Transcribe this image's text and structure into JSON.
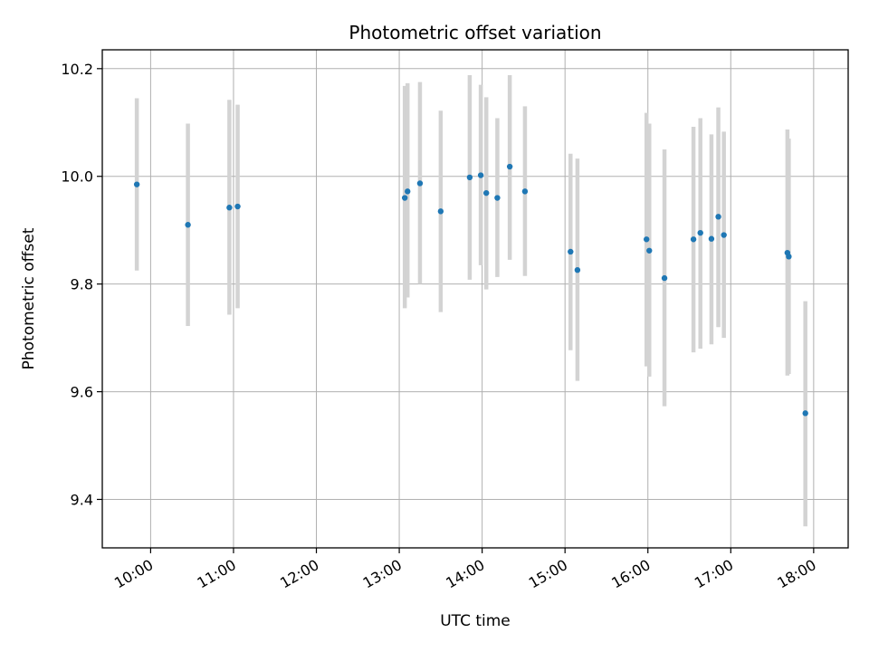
{
  "chart_data": {
    "type": "scatter",
    "title": "Photometric offset variation",
    "xlabel": "UTC time",
    "ylabel": "Photometric offset",
    "xlim": [
      "09:25",
      "18:25"
    ],
    "ylim": [
      9.31,
      10.235
    ],
    "x_ticks": [
      "10:00",
      "11:00",
      "12:00",
      "13:00",
      "14:00",
      "15:00",
      "16:00",
      "17:00",
      "18:00"
    ],
    "y_ticks": [
      9.4,
      9.6,
      9.8,
      10.0,
      10.2
    ],
    "grid": true,
    "legend": "none",
    "colors": {
      "point": "#1f77b4",
      "errorbar": "#d3d3d3",
      "grid": "#b0b0b0"
    },
    "points": [
      {
        "t": "09:50",
        "y": 9.985,
        "lo": 9.825,
        "hi": 10.145
      },
      {
        "t": "10:27",
        "y": 9.91,
        "lo": 9.722,
        "hi": 10.098
      },
      {
        "t": "10:57",
        "y": 9.942,
        "lo": 9.743,
        "hi": 10.142
      },
      {
        "t": "11:03",
        "y": 9.944,
        "lo": 9.755,
        "hi": 10.133
      },
      {
        "t": "13:04",
        "y": 9.96,
        "lo": 9.755,
        "hi": 10.168
      },
      {
        "t": "13:06",
        "y": 9.972,
        "lo": 9.775,
        "hi": 10.173
      },
      {
        "t": "13:15",
        "y": 9.987,
        "lo": 9.8,
        "hi": 10.175
      },
      {
        "t": "13:30",
        "y": 9.935,
        "lo": 9.748,
        "hi": 10.122
      },
      {
        "t": "13:51",
        "y": 9.998,
        "lo": 9.808,
        "hi": 10.188
      },
      {
        "t": "13:59",
        "y": 10.002,
        "lo": 9.835,
        "hi": 10.17
      },
      {
        "t": "14:03",
        "y": 9.969,
        "lo": 9.79,
        "hi": 10.147
      },
      {
        "t": "14:11",
        "y": 9.96,
        "lo": 9.813,
        "hi": 10.108
      },
      {
        "t": "14:20",
        "y": 10.018,
        "lo": 9.845,
        "hi": 10.188
      },
      {
        "t": "14:31",
        "y": 9.972,
        "lo": 9.815,
        "hi": 10.13
      },
      {
        "t": "15:04",
        "y": 9.86,
        "lo": 9.677,
        "hi": 10.042
      },
      {
        "t": "15:09",
        "y": 9.826,
        "lo": 9.62,
        "hi": 10.033
      },
      {
        "t": "15:59",
        "y": 9.883,
        "lo": 9.647,
        "hi": 10.118
      },
      {
        "t": "16:01",
        "y": 9.862,
        "lo": 9.628,
        "hi": 10.098
      },
      {
        "t": "16:12",
        "y": 9.811,
        "lo": 9.573,
        "hi": 10.05
      },
      {
        "t": "16:33",
        "y": 9.883,
        "lo": 9.673,
        "hi": 10.092
      },
      {
        "t": "16:38",
        "y": 9.895,
        "lo": 9.68,
        "hi": 10.108
      },
      {
        "t": "16:46",
        "y": 9.884,
        "lo": 9.688,
        "hi": 10.078
      },
      {
        "t": "16:51",
        "y": 9.925,
        "lo": 9.72,
        "hi": 10.128
      },
      {
        "t": "16:55",
        "y": 9.891,
        "lo": 9.7,
        "hi": 10.083
      },
      {
        "t": "17:41",
        "y": 9.858,
        "lo": 9.63,
        "hi": 10.087
      },
      {
        "t": "17:42",
        "y": 9.851,
        "lo": 9.633,
        "hi": 10.07
      },
      {
        "t": "17:54",
        "y": 9.56,
        "lo": 9.35,
        "hi": 9.768
      }
    ]
  }
}
